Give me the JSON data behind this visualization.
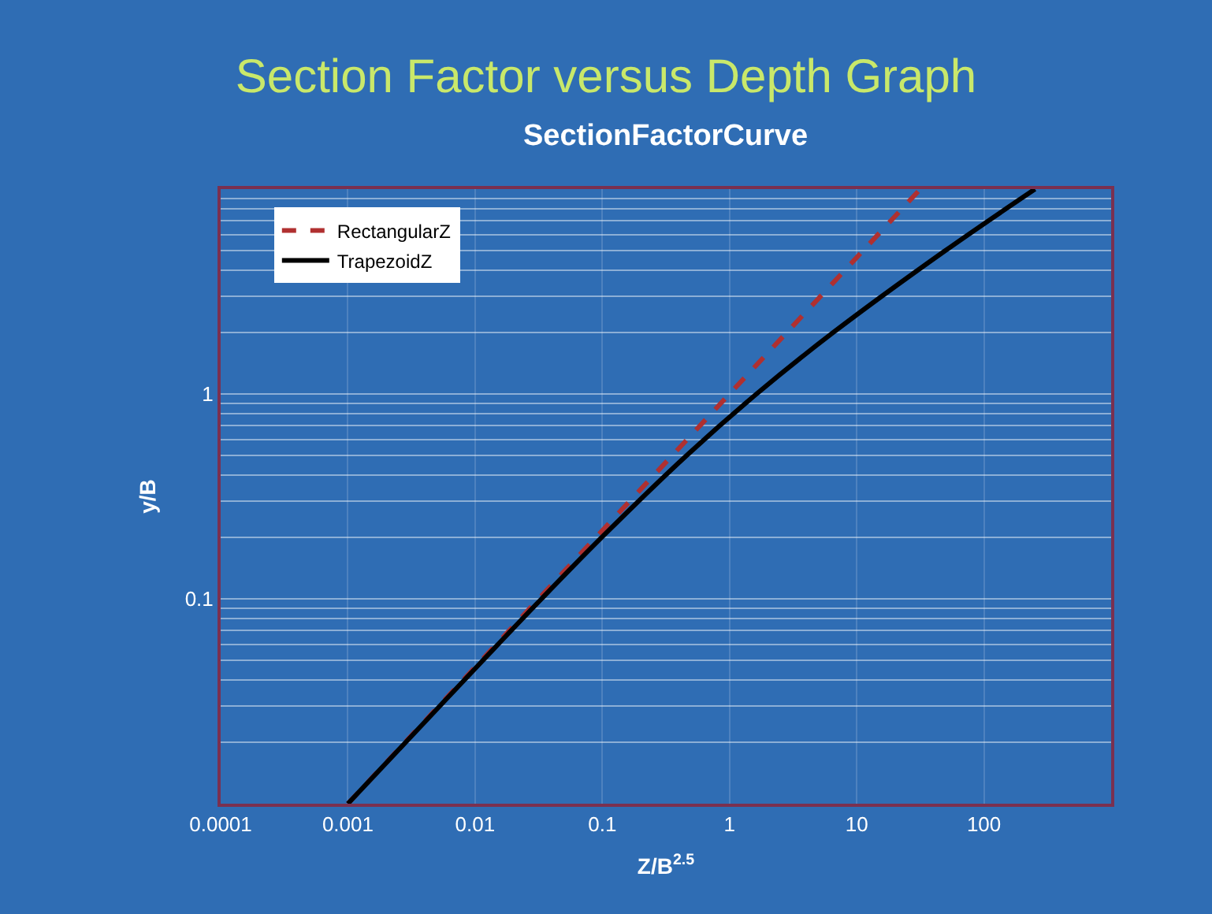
{
  "chart_data": {
    "type": "line",
    "title": "Section Factor versus Depth Graph",
    "subtitle": "SectionFactorCurve",
    "xlabel": "Z/B$^{2.5}$",
    "ylabel": "y/B",
    "log": "xy",
    "grid": true,
    "legend": "top left",
    "xlim": [
      0.0001,
      1000
    ],
    "xticks": [
      0.0001,
      0.001,
      0.01,
      0.1,
      1,
      10,
      100
    ],
    "ylim": [
      0.01,
      10
    ],
    "yticks": [
      {
        "value": 0.02,
        "label": null
      },
      {
        "value": 0.03,
        "label": null
      },
      {
        "value": 0.04,
        "label": null
      },
      {
        "value": 0.05,
        "label": null
      },
      {
        "value": 0.06,
        "label": null
      },
      {
        "value": 0.07,
        "label": null
      },
      {
        "value": 0.08,
        "label": null
      },
      {
        "value": 0.09,
        "label": null
      },
      0.1,
      {
        "value": 0.2,
        "label": null
      },
      {
        "value": 0.3,
        "label": null
      },
      {
        "value": 0.4,
        "label": null
      },
      {
        "value": 0.5,
        "label": null
      },
      {
        "value": 0.6,
        "label": null
      },
      {
        "value": 0.7,
        "label": null
      },
      {
        "value": 0.8,
        "label": null
      },
      {
        "value": 0.9,
        "label": null
      },
      1,
      {
        "value": 2,
        "label": null
      },
      {
        "value": 3,
        "label": null
      },
      {
        "value": 4,
        "label": null
      },
      {
        "value": 5,
        "label": null
      },
      {
        "value": 6,
        "label": null
      },
      {
        "value": 7,
        "label": null
      },
      {
        "value": 8,
        "label": null
      },
      {
        "value": 9,
        "label": null
      }
    ],
    "series": [
      {
        "name": "RectangularZ",
        "color": "#b03030",
        "line_style": "dashed",
        "x": [
          0.001,
          0.00283,
          0.0112,
          0.0316,
          0.0894,
          0.354,
          1,
          2.83,
          11.2,
          31.6
        ],
        "values": [
          0.01,
          0.02,
          0.05,
          0.1,
          0.2,
          0.5,
          1,
          2,
          5,
          10
        ]
      },
      {
        "name": "TrapezoidZ",
        "color": "#000000",
        "line_style": "solid",
        "x": [
          0.001,
          0.00286,
          0.0115,
          0.0333,
          0.0994,
          0.459,
          1.63,
          6.57,
          49.5,
          252
        ],
        "values": [
          0.01,
          0.02,
          0.05,
          0.1,
          0.2,
          0.5,
          1,
          2,
          5,
          10
        ]
      }
    ]
  }
}
